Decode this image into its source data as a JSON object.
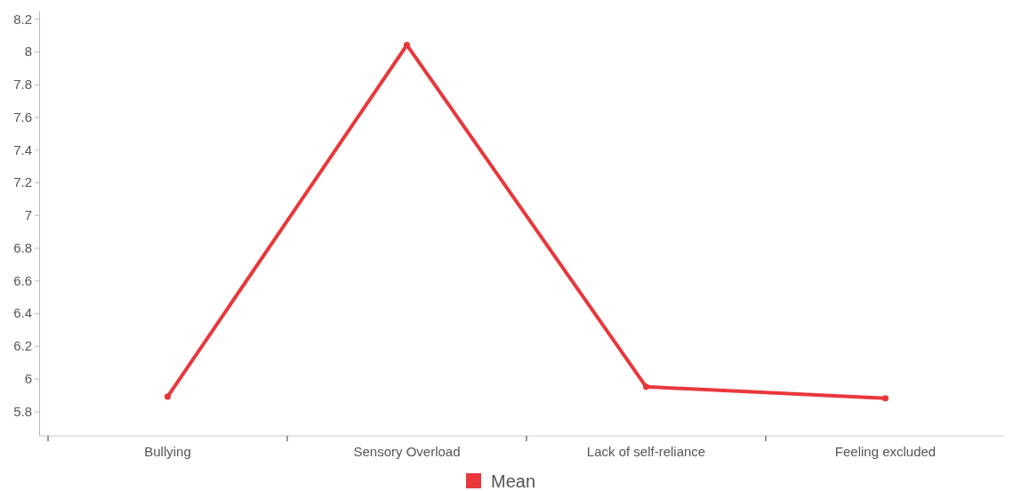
{
  "chart_data": {
    "type": "line",
    "categories": [
      "Bullying",
      "Sensory Overload",
      "Lack of self-reliance",
      "Feeling excluded"
    ],
    "series": [
      {
        "name": "Mean",
        "color": "#e8383b",
        "values": [
          5.89,
          8.04,
          5.95,
          5.88
        ]
      }
    ],
    "ylim": [
      5.65,
      8.25
    ],
    "yticks": [
      5.8,
      6,
      6.2,
      6.4,
      6.6,
      6.8,
      7,
      7.2,
      7.4,
      7.6,
      7.8,
      8,
      8.2
    ],
    "grid": false,
    "legend": "bottom",
    "marker": "circle",
    "line_style": "solid"
  }
}
